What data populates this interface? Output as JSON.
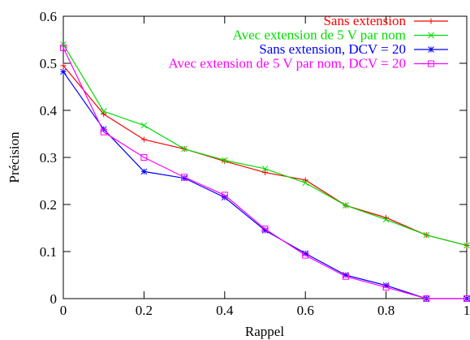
{
  "chart_data": {
    "type": "line",
    "title": "",
    "xlabel": "Rappel",
    "ylabel": "Précision",
    "xlim": [
      0,
      1
    ],
    "ylim": [
      0,
      0.6
    ],
    "grid": false,
    "legend_position": "top-right",
    "x_ticks": [
      "0",
      "0.2",
      "0.4",
      "0.6",
      "0.8",
      "1"
    ],
    "y_ticks": [
      "0",
      "0.1",
      "0.2",
      "0.3",
      "0.4",
      "0.5",
      "0.6"
    ],
    "x": [
      0,
      0.1,
      0.2,
      0.3,
      0.4,
      0.5,
      0.6,
      0.7,
      0.8,
      0.9,
      1.0
    ],
    "series": [
      {
        "name": "Sans extension",
        "color": "#ff0000",
        "marker": "plus",
        "values": [
          0.495,
          0.392,
          0.338,
          0.318,
          0.292,
          0.268,
          0.252,
          0.198,
          0.172,
          0.135,
          0.113
        ]
      },
      {
        "name": "Avec extension de 5 V par nom",
        "color": "#00dd00",
        "marker": "cross",
        "values": [
          0.54,
          0.398,
          0.368,
          0.318,
          0.294,
          0.276,
          0.246,
          0.198,
          0.168,
          0.135,
          0.113
        ]
      },
      {
        "name": "Sans extension, DCV = 20",
        "color": "#0000ff",
        "marker": "star",
        "values": [
          0.482,
          0.36,
          0.27,
          0.256,
          0.215,
          0.145,
          0.096,
          0.05,
          0.028,
          0.0,
          0.0
        ]
      },
      {
        "name": "Avec extension de 5 V par nom, DCV = 20",
        "color": "#ff00ff",
        "marker": "square",
        "values": [
          0.533,
          0.354,
          0.3,
          0.258,
          0.22,
          0.148,
          0.092,
          0.047,
          0.024,
          0.0,
          0.0
        ]
      }
    ]
  }
}
